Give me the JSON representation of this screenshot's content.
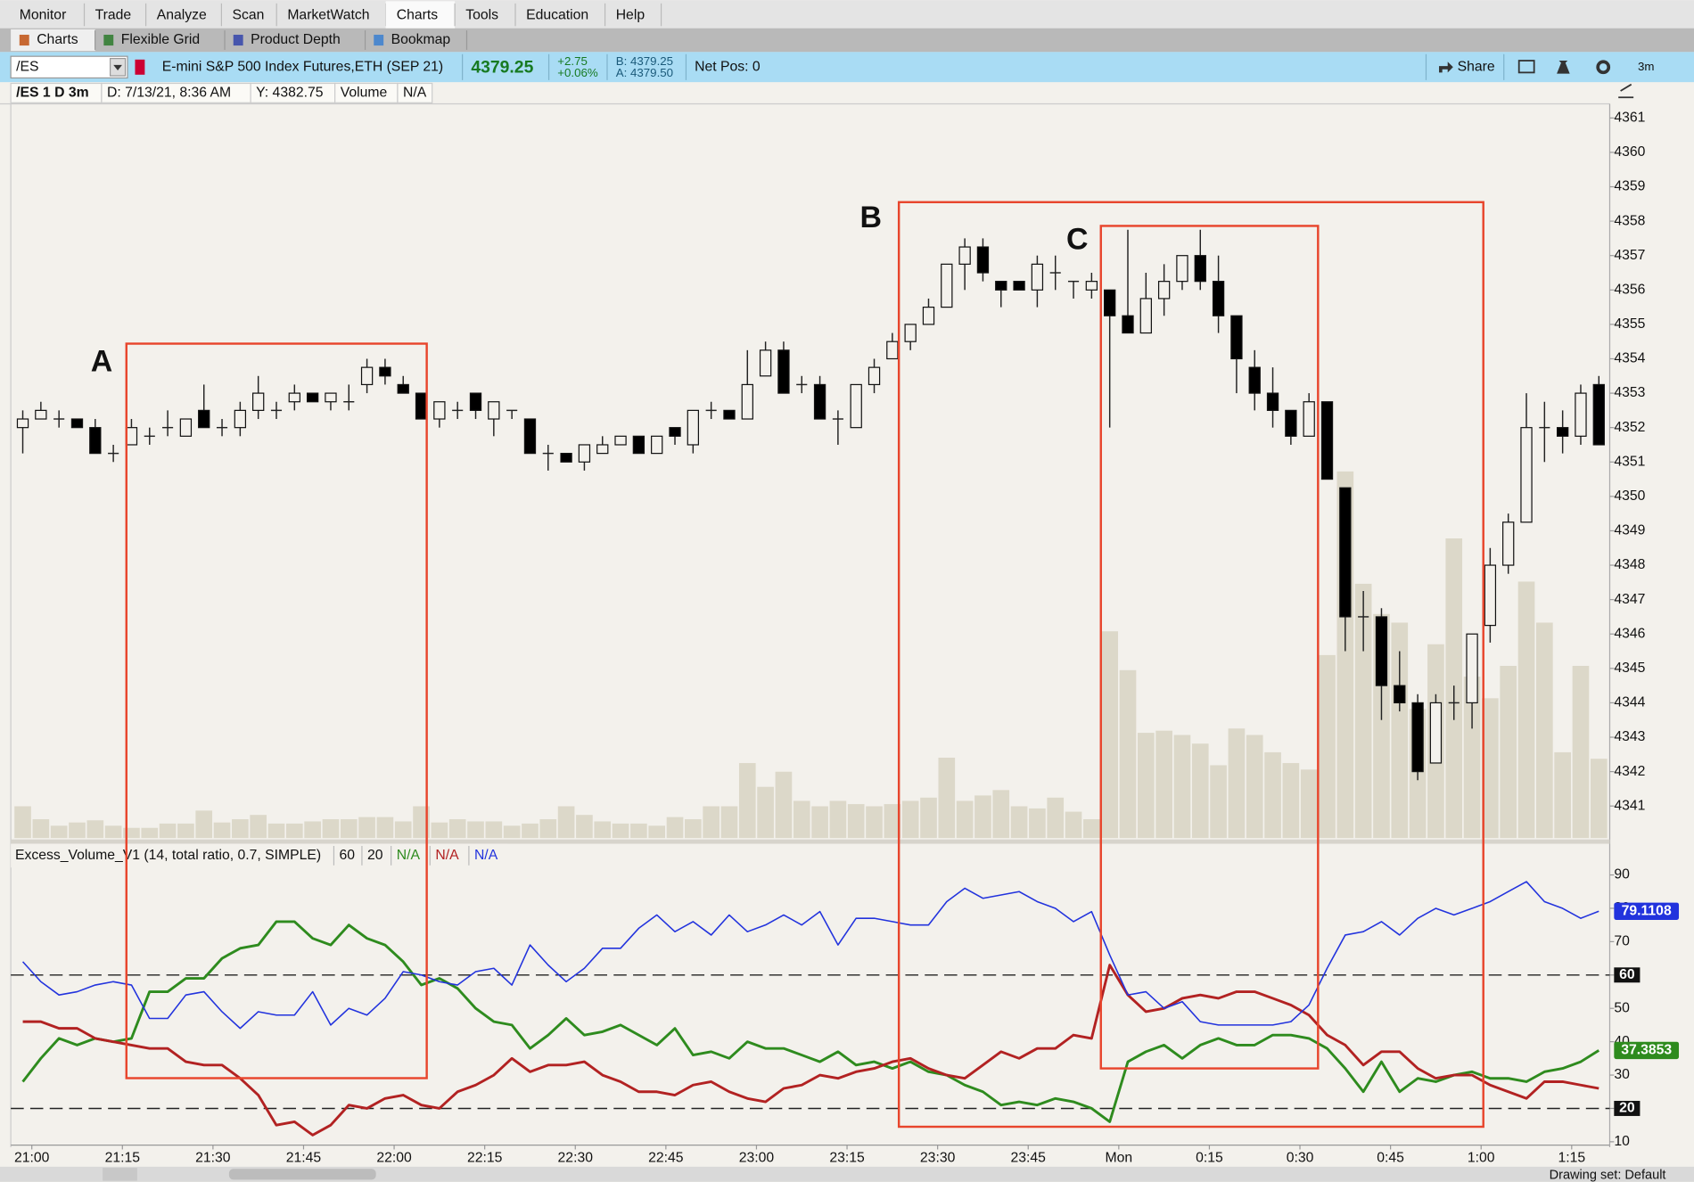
{
  "menu": [
    "Monitor",
    "Trade",
    "Analyze",
    "Scan",
    "MarketWatch",
    "Charts",
    "Tools",
    "Education",
    "Help"
  ],
  "subtabs": [
    "Charts",
    "Flexible Grid",
    "Product Depth",
    "Bookmap"
  ],
  "quote_bar": {
    "symbol": "/ES",
    "description": "E-mini S&P 500 Index Futures,ETH (SEP 21)",
    "last": "4379.25",
    "change": "+2.75",
    "change_pct": "+0.06%",
    "bid": "B: 4379.25",
    "ask": "A: 4379.50",
    "net_pos": "Net Pos: 0",
    "share": "Share",
    "period": "3m"
  },
  "chart_header": [
    "/ES 1 D 3m",
    "D: 7/13/21, 8:36 AM",
    "Y: 4382.75",
    "Volume",
    "N/A"
  ],
  "annotations": [
    "A",
    "B",
    "C"
  ],
  "study_header": {
    "name": "Excess_Volume_V1 (14, total ratio, 0.7, SIMPLE)",
    "inputs": [
      "60",
      "20"
    ],
    "values": [
      "N/A",
      "N/A",
      "N/A"
    ]
  },
  "status": "Drawing set: Default",
  "chart_data": [
    {
      "type": "candlestick",
      "up_color": "#f3f1ec",
      "down_color": "#000000",
      "volume_color": "#dcd8c9",
      "xlim": [
        -0.66,
        87.6
      ],
      "ylim": [
        4340.06,
        4361.41
      ],
      "yticks": [
        4341,
        4342,
        4343,
        4344,
        4345,
        4346,
        4347,
        4348,
        4349,
        4350,
        4351,
        4352,
        4353,
        4354,
        4355,
        4356,
        4357,
        4358,
        4359,
        4360,
        4361
      ],
      "y2lim": [
        0,
        680
      ],
      "ohlc": [
        [
          4352,
          4352.5,
          4351.25,
          4352.25
        ],
        [
          4352.25,
          4352.75,
          4352.25,
          4352.5
        ],
        [
          4352.25,
          4352.5,
          4352,
          4352.25
        ],
        [
          4352.25,
          4352.25,
          4352,
          4352
        ],
        [
          4352,
          4352.25,
          4351.25,
          4351.25
        ],
        [
          4351.25,
          4351.5,
          4351,
          4351.25
        ],
        [
          4351.5,
          4352.25,
          4351.5,
          4352
        ],
        [
          4351.75,
          4352,
          4351.5,
          4351.75
        ],
        [
          4352,
          4352.5,
          4351.75,
          4352
        ],
        [
          4351.75,
          4352.25,
          4351.75,
          4352.25
        ],
        [
          4352.5,
          4353.25,
          4352,
          4352
        ],
        [
          4352,
          4352.25,
          4351.75,
          4352
        ],
        [
          4352,
          4352.75,
          4351.75,
          4352.5
        ],
        [
          4352.5,
          4353.5,
          4352.25,
          4353
        ],
        [
          4352.5,
          4352.75,
          4352.25,
          4352.5
        ],
        [
          4352.75,
          4353.25,
          4352.5,
          4353
        ],
        [
          4353,
          4353,
          4352.75,
          4352.75
        ],
        [
          4352.75,
          4353,
          4352.5,
          4353
        ],
        [
          4352.75,
          4353.25,
          4352.5,
          4352.75
        ],
        [
          4353.25,
          4354,
          4353,
          4353.75
        ],
        [
          4353.75,
          4354,
          4353.25,
          4353.5
        ],
        [
          4353.25,
          4353.5,
          4353,
          4353
        ],
        [
          4353,
          4353,
          4352.25,
          4352.25
        ],
        [
          4352.25,
          4352.75,
          4352,
          4352.75
        ],
        [
          4352.5,
          4352.75,
          4352.25,
          4352.5
        ],
        [
          4353,
          4353,
          4352.25,
          4352.5
        ],
        [
          4352.25,
          4352.75,
          4351.75,
          4352.75
        ],
        [
          4352.5,
          4352.5,
          4352.25,
          4352.5
        ],
        [
          4352.25,
          4352.25,
          4351.25,
          4351.25
        ],
        [
          4351.25,
          4351.5,
          4350.75,
          4351.25
        ],
        [
          4351.25,
          4351.25,
          4351,
          4351
        ],
        [
          4351,
          4351.5,
          4350.75,
          4351.5
        ],
        [
          4351.25,
          4351.75,
          4351.25,
          4351.5
        ],
        [
          4351.5,
          4351.75,
          4351.5,
          4351.75
        ],
        [
          4351.75,
          4351.75,
          4351.25,
          4351.25
        ],
        [
          4351.25,
          4351.75,
          4351.25,
          4351.75
        ],
        [
          4352,
          4352,
          4351.5,
          4351.75
        ],
        [
          4351.5,
          4352.5,
          4351.25,
          4352.5
        ],
        [
          4352.5,
          4352.75,
          4352.25,
          4352.5
        ],
        [
          4352.5,
          4352.5,
          4352.25,
          4352.25
        ],
        [
          4352.25,
          4354.25,
          4352.25,
          4353.25
        ],
        [
          4353.5,
          4354.5,
          4353.5,
          4354.25
        ],
        [
          4354.25,
          4354.5,
          4353,
          4353
        ],
        [
          4353.25,
          4353.5,
          4353,
          4353.25
        ],
        [
          4353.25,
          4353.5,
          4352.25,
          4352.25
        ],
        [
          4352.25,
          4352.5,
          4351.5,
          4352.25
        ],
        [
          4352,
          4353.25,
          4352,
          4353.25
        ],
        [
          4353.25,
          4354,
          4353,
          4353.75
        ],
        [
          4354,
          4354.75,
          4354,
          4354.5
        ],
        [
          4354.5,
          4355,
          4354.25,
          4355
        ],
        [
          4355,
          4355.75,
          4355,
          4355.5
        ],
        [
          4355.5,
          4356.75,
          4355.5,
          4356.75
        ],
        [
          4356.75,
          4357.5,
          4356,
          4357.25
        ],
        [
          4357.25,
          4357.5,
          4356.25,
          4356.5
        ],
        [
          4356.25,
          4356.25,
          4355.5,
          4356
        ],
        [
          4356.25,
          4356.25,
          4356,
          4356
        ],
        [
          4356,
          4357,
          4355.5,
          4356.75
        ],
        [
          4356.5,
          4357,
          4356,
          4356.5
        ],
        [
          4356.25,
          4356.25,
          4355.75,
          4356.25
        ],
        [
          4356,
          4356.5,
          4355.75,
          4356.25
        ],
        [
          4356,
          4356,
          4352,
          4355.25
        ],
        [
          4355.25,
          4357.75,
          4354.75,
          4354.75
        ],
        [
          4354.75,
          4356.5,
          4354.75,
          4355.75
        ],
        [
          4355.75,
          4356.75,
          4355.25,
          4356.25
        ],
        [
          4356.25,
          4357,
          4356,
          4357
        ],
        [
          4357,
          4357.75,
          4356,
          4356.25
        ],
        [
          4356.25,
          4357,
          4354.75,
          4355.25
        ],
        [
          4355.25,
          4355.25,
          4353,
          4354
        ],
        [
          4353.75,
          4354.25,
          4352.5,
          4353
        ],
        [
          4353,
          4353.75,
          4352,
          4352.5
        ],
        [
          4352.5,
          4352.5,
          4351.5,
          4351.75
        ],
        [
          4351.75,
          4353,
          4351.75,
          4352.75
        ],
        [
          4352.75,
          4352.75,
          4350.5,
          4350.5
        ],
        [
          4350.25,
          4350.25,
          4345.5,
          4346.5
        ],
        [
          4346.5,
          4347.25,
          4345.5,
          4346.5
        ],
        [
          4346.5,
          4346.75,
          4343.5,
          4344.5
        ],
        [
          4344.5,
          4345.5,
          4343.75,
          4344
        ],
        [
          4344,
          4344.25,
          4341.75,
          4342
        ],
        [
          4342.25,
          4344.25,
          4342.25,
          4344
        ],
        [
          4344,
          4344.5,
          4343.5,
          4344
        ],
        [
          4344,
          4346,
          4343.25,
          4346
        ],
        [
          4346.25,
          4348.5,
          4345.75,
          4348
        ],
        [
          4348,
          4349.5,
          4347.75,
          4349.25
        ],
        [
          4349.25,
          4353,
          4349.25,
          4352
        ],
        [
          4352,
          4352.75,
          4351,
          4352
        ],
        [
          4352,
          4352.5,
          4351.25,
          4351.75
        ],
        [
          4351.75,
          4353.25,
          4351.5,
          4353
        ],
        [
          4353.25,
          4353.5,
          4351.5,
          4351.5
        ]
      ],
      "volume": [
        30,
        18,
        12,
        15,
        17,
        12,
        10,
        10,
        14,
        14,
        26,
        15,
        18,
        22,
        14,
        14,
        16,
        18,
        18,
        20,
        20,
        16,
        30,
        15,
        18,
        16,
        16,
        12,
        14,
        18,
        30,
        22,
        16,
        14,
        14,
        12,
        20,
        18,
        30,
        30,
        70,
        48,
        62,
        35,
        30,
        35,
        32,
        30,
        32,
        35,
        38,
        75,
        35,
        40,
        45,
        30,
        28,
        38,
        25,
        18,
        192,
        156,
        98,
        100,
        96,
        88,
        68,
        102,
        96,
        80,
        70,
        64,
        170,
        340,
        236,
        208,
        200,
        120,
        180,
        278,
        150,
        130,
        160,
        238,
        200,
        80,
        160,
        74
      ]
    },
    {
      "type": "line",
      "xlim": [
        -0.66,
        87.6
      ],
      "ylim": [
        9,
        93.2
      ],
      "yticks": [
        10,
        20,
        30,
        40,
        50,
        60,
        70,
        80,
        90
      ],
      "reference_lines": [
        60,
        20
      ],
      "xticks": [
        {
          "value": 0.5,
          "label": "21:00"
        },
        {
          "value": 5.5,
          "label": "21:15"
        },
        {
          "value": 10.5,
          "label": "21:30"
        },
        {
          "value": 15.5,
          "label": "21:45"
        },
        {
          "value": 20.5,
          "label": "22:00"
        },
        {
          "value": 25.5,
          "label": "22:15"
        },
        {
          "value": 30.5,
          "label": "22:30"
        },
        {
          "value": 35.5,
          "label": "22:45"
        },
        {
          "value": 40.5,
          "label": "23:00"
        },
        {
          "value": 45.5,
          "label": "23:15"
        },
        {
          "value": 50.5,
          "label": "23:30"
        },
        {
          "value": 55.5,
          "label": "23:45"
        },
        {
          "value": 60.5,
          "label": "Mon"
        },
        {
          "value": 65.5,
          "label": "0:15"
        },
        {
          "value": 70.5,
          "label": "0:30"
        },
        {
          "value": 75.5,
          "label": "0:45"
        },
        {
          "value": 80.5,
          "label": "1:00"
        },
        {
          "value": 85.5,
          "label": "1:15"
        }
      ],
      "series": [
        {
          "color": "#2e8b1e",
          "width": 2.4,
          "last_label": true,
          "values": [
            28,
            35,
            41,
            39,
            41,
            40,
            41,
            55,
            55,
            59,
            59,
            65,
            68,
            69,
            76,
            76,
            71,
            69,
            75,
            71,
            69,
            64,
            57,
            59,
            56,
            50,
            46,
            45,
            38,
            42,
            47,
            42,
            43,
            45,
            42,
            39,
            44,
            36,
            37,
            35,
            40,
            38,
            38,
            36,
            34,
            37,
            33,
            34,
            32,
            34,
            31,
            30,
            27,
            25,
            21,
            22,
            21,
            23,
            22,
            20,
            16,
            34,
            37,
            39,
            35,
            39,
            41,
            39,
            39,
            42,
            42,
            41,
            38,
            32,
            25,
            34,
            25,
            29,
            28,
            30,
            31,
            29,
            29,
            28,
            31,
            32,
            34,
            37.3853
          ]
        },
        {
          "color": "#b22222",
          "width": 2.4,
          "last_label": false,
          "values": [
            46,
            46,
            44,
            44,
            41,
            40,
            39,
            38,
            38,
            34,
            33,
            33,
            29,
            24,
            15,
            16,
            12,
            15,
            21,
            20,
            23,
            24,
            21,
            20,
            25,
            27,
            30,
            35,
            31,
            33,
            33,
            34,
            30,
            28,
            25,
            25,
            24,
            27,
            28,
            25,
            23,
            22,
            26,
            27,
            30,
            29,
            31,
            32,
            34,
            35,
            32,
            30,
            29,
            33,
            37,
            35,
            38,
            38,
            42,
            41,
            63,
            54,
            49,
            50,
            53,
            54,
            53,
            55,
            55,
            53,
            51,
            48,
            42,
            39,
            33,
            37,
            37,
            32,
            29,
            30,
            30,
            27,
            25,
            23,
            28,
            28,
            27,
            26
          ]
        },
        {
          "color": "#2233dd",
          "width": 1.3,
          "last_label": true,
          "values": [
            64,
            58,
            54,
            55,
            57,
            58,
            57,
            47,
            47,
            54,
            55,
            49,
            44,
            49,
            48,
            48,
            55,
            45,
            50,
            48,
            53,
            61,
            60,
            58,
            57,
            61,
            62,
            57,
            69,
            63,
            58,
            62,
            68,
            68,
            74,
            78,
            73,
            76,
            72,
            78,
            73,
            75,
            78,
            75,
            79,
            69,
            77,
            77,
            76,
            75,
            75,
            82,
            86,
            83,
            84,
            85,
            82,
            80,
            76,
            79,
            66,
            54,
            55,
            50,
            52,
            46,
            45,
            45,
            45,
            45,
            46,
            51,
            62,
            72,
            73,
            76,
            72,
            77,
            80,
            78,
            80,
            82,
            85,
            88,
            82,
            80,
            77,
            79.1108
          ]
        }
      ]
    }
  ]
}
